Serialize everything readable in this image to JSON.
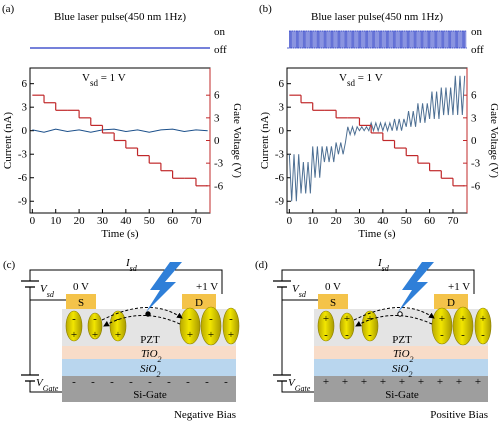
{
  "chart_data": [
    {
      "type": "line",
      "panel_label": "(a)",
      "laser": {
        "label": "Blue laser pulse(450 nm 1Hz)",
        "on": "on",
        "off": "off",
        "pulsed": false,
        "color": "#2336c4"
      },
      "annotation": {
        "main": "V",
        "sub": "sd",
        "rest": " = 1 V"
      },
      "x_label": "Time (s)",
      "y_label": "Current (nA)",
      "y2_label": "Gate Voltage (V)",
      "xlim": [
        -1,
        76
      ],
      "xticks": [
        0,
        10,
        20,
        30,
        40,
        50,
        60,
        70
      ],
      "ylim": [
        -10.5,
        8
      ],
      "yticks": [
        6,
        3,
        0,
        -3,
        -6,
        -9
      ],
      "y2lim": [
        -9.6,
        9.6
      ],
      "y2ticks": [
        6,
        3,
        0,
        -3,
        -6
      ],
      "series": [
        {
          "color": "#1b4f8a",
          "x": [
            0,
            5,
            10,
            15,
            20,
            25,
            30,
            35,
            40,
            45,
            50,
            55,
            60,
            65,
            70,
            75
          ],
          "values": [
            0.1,
            -0.2,
            0.2,
            -0.1,
            0.1,
            -0.2,
            0.1,
            0.2,
            -0.1,
            0.1,
            -0.2,
            0.1,
            0.2,
            -0.1,
            0.1,
            0
          ]
        },
        {
          "axis": "y2",
          "step": true,
          "color": "#c0282a",
          "x": [
            0,
            5,
            10,
            15,
            20,
            25,
            30,
            35,
            40,
            45,
            50,
            55,
            60,
            65,
            70,
            75
          ],
          "values": [
            6,
            5,
            4,
            4,
            3,
            2,
            1,
            0,
            -1,
            -2,
            -3,
            -4,
            -5,
            -5,
            -6,
            -6
          ]
        }
      ]
    },
    {
      "type": "line",
      "panel_label": "(b)",
      "laser": {
        "label": "Blue laser pulse(450 nm 1Hz)",
        "on": "on",
        "off": "off",
        "pulsed": true,
        "color": "#2336c4"
      },
      "annotation": {
        "main": "V",
        "sub": "sd",
        "rest": " = 1 V"
      },
      "x_label": "Time (s)",
      "y_label": "Current (nA)",
      "y2_label": "Gate Voltage (V)",
      "xlim": [
        -1,
        76
      ],
      "xticks": [
        0,
        10,
        20,
        30,
        40,
        50,
        60,
        70
      ],
      "ylim": [
        -10.5,
        8
      ],
      "yticks": [
        6,
        3,
        0,
        -3,
        -6,
        -9
      ],
      "y2lim": [
        -9.6,
        9.6
      ],
      "y2ticks": [
        6,
        3,
        0,
        -3,
        -6
      ],
      "series": [
        {
          "color": "#4d6f93",
          "x": [
            0,
            1,
            2,
            3,
            4,
            5,
            6,
            7,
            8,
            9,
            10,
            11,
            12,
            13,
            14,
            15,
            16,
            17,
            18,
            19,
            20,
            21,
            22,
            23,
            24,
            25,
            26,
            27,
            28,
            29,
            30,
            31,
            32,
            33,
            34,
            35,
            36,
            37,
            38,
            39,
            40,
            41,
            42,
            43,
            44,
            45,
            46,
            47,
            48,
            49,
            50,
            51,
            52,
            53,
            54,
            55,
            56,
            57,
            58,
            59,
            60,
            61,
            62,
            63,
            64,
            65,
            66,
            67,
            68,
            69,
            70,
            71,
            72,
            73,
            74,
            75
          ],
          "values": [
            -3,
            -9,
            -3,
            -9,
            -3,
            -8,
            -4,
            -8,
            -4,
            -8,
            -2,
            -6,
            -2,
            -6,
            -2,
            -4,
            -2,
            -4,
            -2,
            -4,
            -1.5,
            -3,
            -1.5,
            -3,
            -1.5,
            0.5,
            -0.5,
            0.5,
            -0.5,
            0.5,
            0,
            0.5,
            0,
            0.5,
            0,
            1,
            0,
            1,
            0,
            1,
            0,
            1,
            0,
            1,
            0,
            1.5,
            0,
            1.5,
            0,
            1.5,
            0.5,
            2.5,
            0.5,
            2.5,
            0.5,
            3.5,
            1,
            3.5,
            1,
            3.5,
            1.5,
            5,
            1.5,
            5,
            1.5,
            5.5,
            2,
            5.5,
            2,
            5.5,
            2,
            7,
            2,
            7,
            2,
            7
          ]
        },
        {
          "axis": "y2",
          "step": true,
          "color": "#c0282a",
          "x": [
            0,
            5,
            10,
            15,
            20,
            25,
            30,
            35,
            40,
            45,
            50,
            55,
            60,
            65,
            70,
            75
          ],
          "values": [
            6,
            5,
            4,
            4,
            3,
            3,
            2,
            1,
            0,
            -1,
            -2,
            -3,
            -4,
            -5,
            -6,
            -6
          ]
        }
      ]
    }
  ],
  "diagrams": [
    {
      "panel_label": "(c)",
      "current": {
        "main": "I",
        "sub": "sd"
      },
      "source_voltage": {
        "main": "V",
        "sub": "sd"
      },
      "gate_voltage": {
        "main": "V",
        "sub": "Gate"
      },
      "left_potential": "0 V",
      "right_potential": "+1 V",
      "source": "S",
      "drain": "D",
      "channel": "PZT",
      "layer1": {
        "main": "TiO",
        "sub": "2"
      },
      "layer2": {
        "main": "SiO",
        "sub": "2"
      },
      "gate": "Si-Gate",
      "gate_charge": "-",
      "dipole": {
        "top": "-",
        "bottom": "+"
      },
      "bias": "Negative Bias"
    },
    {
      "panel_label": "(d)",
      "current": {
        "main": "I",
        "sub": "sd"
      },
      "source_voltage": {
        "main": "V",
        "sub": "sd"
      },
      "gate_voltage": {
        "main": "V",
        "sub": "Gate"
      },
      "left_potential": "0 V",
      "right_potential": "+1 V",
      "source": "S",
      "drain": "D",
      "channel": "PZT",
      "layer1": {
        "main": "TiO",
        "sub": "2"
      },
      "layer2": {
        "main": "SiO",
        "sub": "2"
      },
      "gate": "Si-Gate",
      "gate_charge": "+",
      "dipole": {
        "top": "+",
        "bottom": "-"
      },
      "bias": "Positive Bias"
    }
  ]
}
